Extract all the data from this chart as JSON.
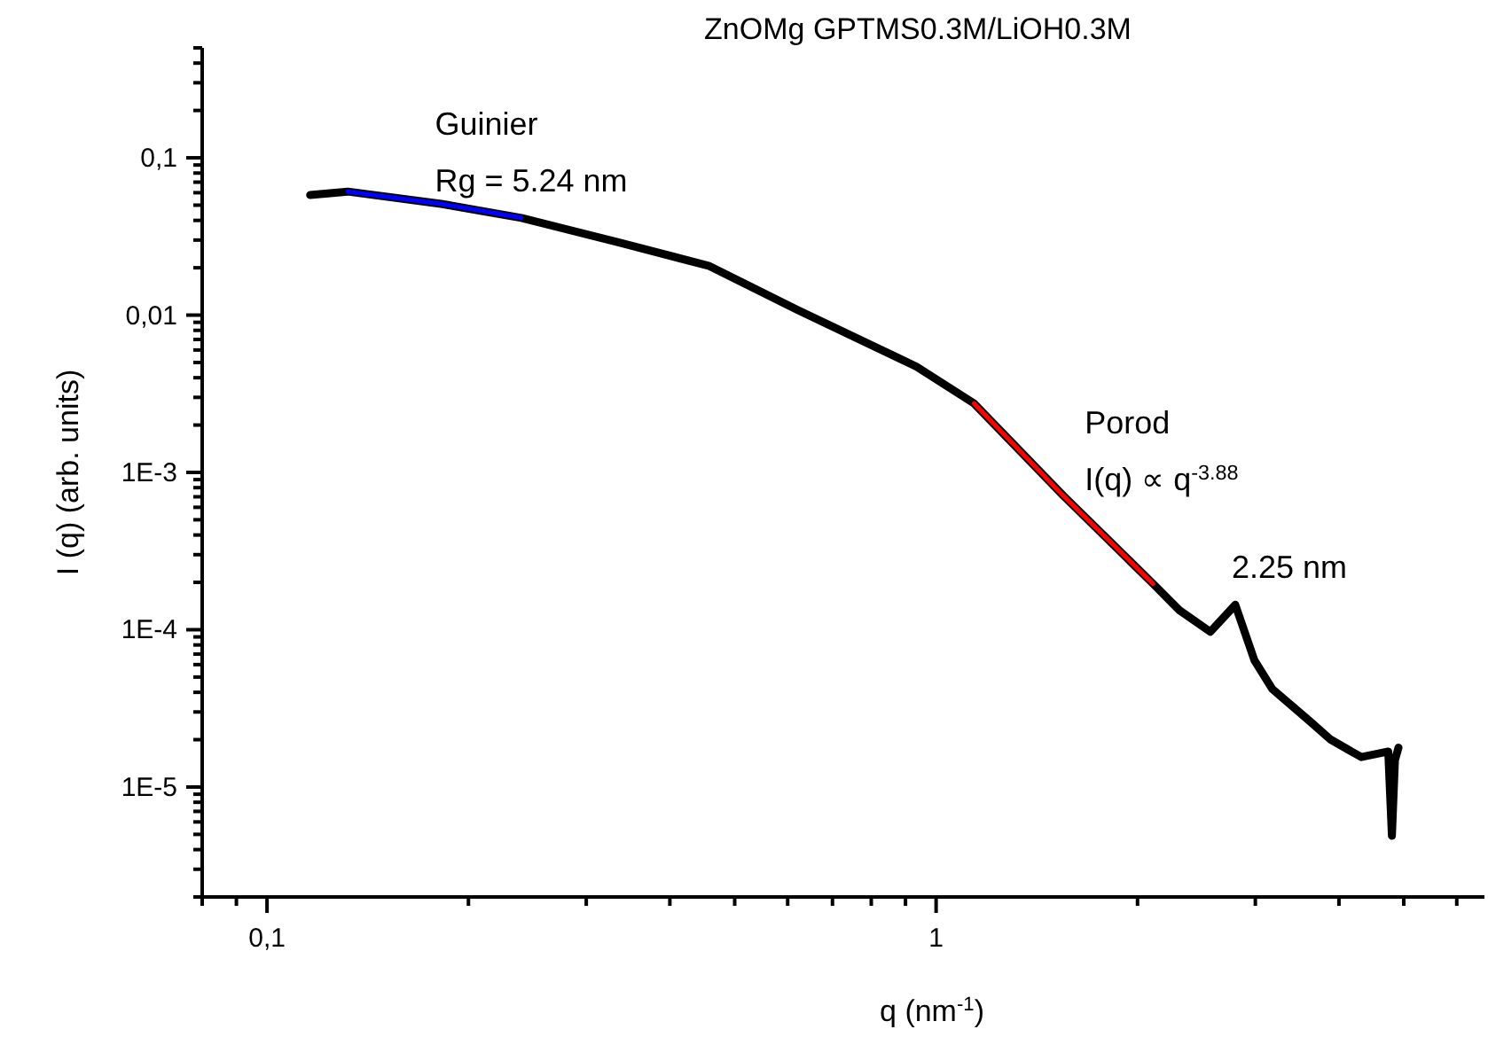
{
  "chart_data": {
    "type": "line",
    "title": "ZnOMg GPTMS0.3M/LiOH0.3M",
    "xlabel": "q (nm$^{-1}$)",
    "ylabel": "I (q) (arb. units)",
    "log": "xy",
    "grid": false,
    "marker": "none",
    "line_style": "solid",
    "xlim": [
      0.08,
      6.6
    ],
    "ylim": [
      2e-06,
      0.5
    ],
    "xticks": [
      {
        "value": 0.08,
        "label": null
      },
      {
        "value": 0.09,
        "label": null
      },
      {
        "value": 0.1,
        "label": "0,1"
      },
      {
        "value": 0.2,
        "label": null
      },
      {
        "value": 0.3,
        "label": null
      },
      {
        "value": 0.4,
        "label": null
      },
      {
        "value": 0.5,
        "label": null
      },
      {
        "value": 0.6,
        "label": null
      },
      {
        "value": 0.7,
        "label": null
      },
      {
        "value": 0.8,
        "label": null
      },
      {
        "value": 0.9,
        "label": null
      },
      1,
      {
        "value": 2,
        "label": null
      },
      {
        "value": 3,
        "label": null
      },
      {
        "value": 4,
        "label": null
      },
      {
        "value": 5,
        "label": null
      },
      {
        "value": 6,
        "label": null
      }
    ],
    "yticks": [
      {
        "value": 2e-06,
        "label": null
      },
      {
        "value": 3e-06,
        "label": null
      },
      {
        "value": 4e-06,
        "label": null
      },
      {
        "value": 5e-06,
        "label": null
      },
      {
        "value": 6e-06,
        "label": null
      },
      {
        "value": 7e-06,
        "label": null
      },
      {
        "value": 8e-06,
        "label": null
      },
      {
        "value": 9e-06,
        "label": null
      },
      {
        "value": 1e-05,
        "label": "1E-5"
      },
      {
        "value": 2e-05,
        "label": null
      },
      {
        "value": 3e-05,
        "label": null
      },
      {
        "value": 4e-05,
        "label": null
      },
      {
        "value": 5e-05,
        "label": null
      },
      {
        "value": 6e-05,
        "label": null
      },
      {
        "value": 7e-05,
        "label": null
      },
      {
        "value": 8e-05,
        "label": null
      },
      {
        "value": 9e-05,
        "label": null
      },
      {
        "value": 0.0001,
        "label": "1E-4"
      },
      {
        "value": 0.0002,
        "label": null
      },
      {
        "value": 0.0003,
        "label": null
      },
      {
        "value": 0.0004,
        "label": null
      },
      {
        "value": 0.0005,
        "label": null
      },
      {
        "value": 0.0006,
        "label": null
      },
      {
        "value": 0.0007,
        "label": null
      },
      {
        "value": 0.0008,
        "label": null
      },
      {
        "value": 0.0009,
        "label": null
      },
      {
        "value": 0.001,
        "label": "1E-3"
      },
      {
        "value": 0.002,
        "label": null
      },
      {
        "value": 0.003,
        "label": null
      },
      {
        "value": 0.004,
        "label": null
      },
      {
        "value": 0.005,
        "label": null
      },
      {
        "value": 0.006,
        "label": null
      },
      {
        "value": 0.007,
        "label": null
      },
      {
        "value": 0.008,
        "label": null
      },
      {
        "value": 0.009,
        "label": null
      },
      {
        "value": 0.01,
        "label": "0,01"
      },
      {
        "value": 0.02,
        "label": null
      },
      {
        "value": 0.03,
        "label": null
      },
      {
        "value": 0.04,
        "label": null
      },
      {
        "value": 0.05,
        "label": null
      },
      {
        "value": 0.06,
        "label": null
      },
      {
        "value": 0.07,
        "label": null
      },
      {
        "value": 0.08,
        "label": null
      },
      {
        "value": 0.09,
        "label": null
      },
      {
        "value": 0.1,
        "label": "0,1"
      },
      {
        "value": 0.2,
        "label": null
      },
      {
        "value": 0.3,
        "label": null
      },
      {
        "value": 0.4,
        "label": null
      },
      {
        "value": 0.5,
        "label": null
      }
    ],
    "series": [
      {
        "color": "#000000",
        "x": [
          0.116,
          0.132,
          0.182,
          0.24,
          0.336,
          0.457,
          0.62,
          0.935,
          1.14,
          1.55,
          2.11,
          2.31,
          2.57,
          2.8,
          2.99,
          3.18,
          3.6,
          3.89,
          4.32,
          4.74,
          4.8,
          4.85,
          4.91
        ],
        "values": [
          0.058,
          0.061,
          0.051,
          0.0415,
          0.0289,
          0.0206,
          0.0108,
          0.0047,
          0.00274,
          0.00071,
          0.000196,
          0.000133,
          9.7e-05,
          0.000144,
          6.4e-05,
          4.2e-05,
          2.67e-05,
          2e-05,
          1.55e-05,
          1.68e-05,
          4.9e-06,
          1.48e-05,
          1.78e-05
        ]
      },
      {
        "color": "#0000ff",
        "x": [
          0.132,
          0.182,
          0.24
        ],
        "values": [
          0.061,
          0.051,
          0.0415
        ]
      },
      {
        "color": "#ff0000",
        "x": [
          1.14,
          1.55,
          2.11
        ],
        "values": [
          0.00274,
          0.00071,
          0.000196
        ]
      }
    ],
    "annotations": [
      {
        "text": "Guinier\nRg = 5.24 nm",
        "x": 0.175,
        "y": 0.052
      },
      {
        "text": "Porod\nI(q) ∝ q$^{-3.88}$",
        "x": 1.55,
        "y": 0.00071
      },
      {
        "text": "2.25 nm",
        "x": 2.8,
        "y": 0.000144
      }
    ]
  }
}
